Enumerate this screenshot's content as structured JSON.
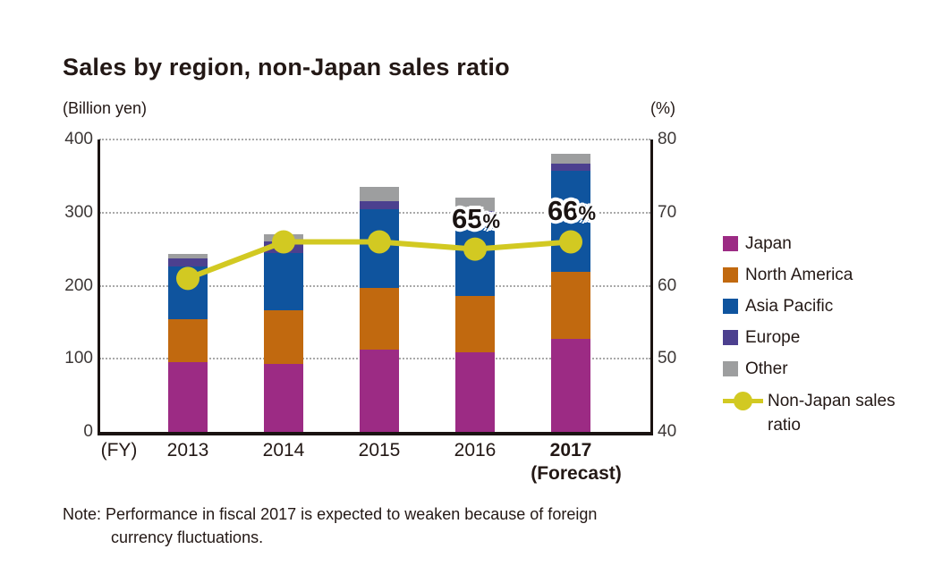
{
  "title": "Sales by region, non-Japan sales ratio",
  "left_axis_unit": "(Billion yen)",
  "right_axis_unit": "(%)",
  "fy_label": "(FY)",
  "note": {
    "line1": "Note: Performance in fiscal 2017 is expected to weaken because of foreign",
    "line2": "currency fluctuations."
  },
  "chart_data": {
    "type": "bar",
    "subtype": "stacked-bar-with-line",
    "categories": [
      "2013",
      "2014",
      "2015",
      "2016",
      "2017"
    ],
    "x_labels": [
      {
        "label": "2013",
        "bold": false
      },
      {
        "label": "2014",
        "bold": false
      },
      {
        "label": "2015",
        "bold": false
      },
      {
        "label": "2016",
        "bold": false
      },
      {
        "label": "2017",
        "bold": true,
        "sub": "(Forecast)"
      }
    ],
    "series": [
      {
        "name": "Japan",
        "color": "#9c2b84",
        "values": [
          96,
          93,
          113,
          109,
          127
        ]
      },
      {
        "name": "North America",
        "color": "#c1690f",
        "values": [
          58,
          73,
          84,
          77,
          92
        ]
      },
      {
        "name": "Asia Pacific",
        "color": "#0f549e",
        "values": [
          72,
          79,
          108,
          107,
          138
        ]
      },
      {
        "name": "Europe",
        "color": "#4c408f",
        "values": [
          11,
          16,
          11,
          9,
          10
        ]
      },
      {
        "name": "Other",
        "color": "#9d9e9f",
        "values": [
          7,
          9,
          19,
          19,
          14
        ]
      }
    ],
    "bar_totals": [
      244,
      270,
      335,
      321,
      381
    ],
    "line_series": {
      "name": "Non-Japan sales ratio",
      "legend_lines": [
        "Non-Japan sales",
        "ratio"
      ],
      "color": "#d2c922",
      "axis": "right",
      "values": [
        61,
        66,
        66,
        65,
        66
      ]
    },
    "left_axis": {
      "label": "(Billion yen)",
      "ticks": [
        400,
        300,
        200,
        100,
        0
      ],
      "range": [
        0,
        400
      ]
    },
    "right_axis": {
      "label": "(%)",
      "ticks": [
        80,
        70,
        60,
        50,
        40
      ],
      "range": [
        40,
        80
      ]
    },
    "annotations": [
      {
        "category": "2016",
        "text": "65",
        "suffix": "%"
      },
      {
        "category": "2017",
        "text": "66",
        "suffix": "%"
      }
    ],
    "grid": "horizontal dotted",
    "legend_position": "right"
  }
}
